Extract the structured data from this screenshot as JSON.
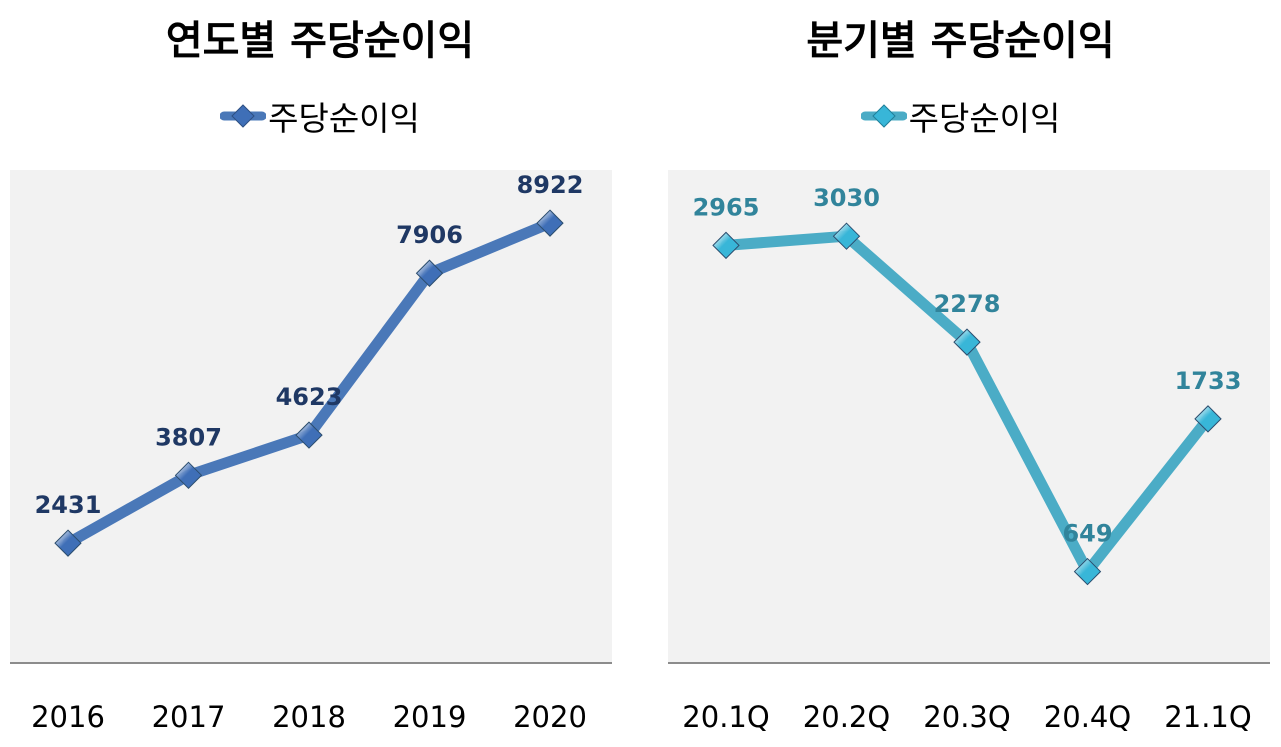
{
  "chart_data": [
    {
      "type": "line",
      "title": "연도별 주당순이익",
      "legend": "주당순이익",
      "legend_position": "top",
      "categories": [
        "2016",
        "2017",
        "2018",
        "2019",
        "2020"
      ],
      "series": [
        {
          "name": "주당순이익",
          "values": [
            2431,
            3807,
            4623,
            7906,
            8922
          ]
        }
      ],
      "data_labels": [
        "2431",
        "3807",
        "4623",
        "7906",
        "8922"
      ],
      "ylim": [
        0,
        10000
      ],
      "grid": false,
      "line_color": "#4a78b8",
      "marker_color": "#3f6fb7",
      "label_color": "#1f3864"
    },
    {
      "type": "line",
      "title": "분기별 주당순이익",
      "legend": "주당순이익",
      "legend_position": "top",
      "categories": [
        "20.1Q",
        "20.2Q",
        "20.3Q",
        "20.4Q",
        "21.1Q"
      ],
      "series": [
        {
          "name": "주당순이익",
          "values": [
            2965,
            3030,
            2278,
            649,
            1733
          ]
        }
      ],
      "data_labels": [
        "2965",
        "3030",
        "2278",
        "649",
        "1733"
      ],
      "ylim": [
        0,
        3500
      ],
      "grid": false,
      "line_color": "#4bacc6",
      "marker_color": "#38b6d8",
      "label_color": "#31849b"
    }
  ]
}
